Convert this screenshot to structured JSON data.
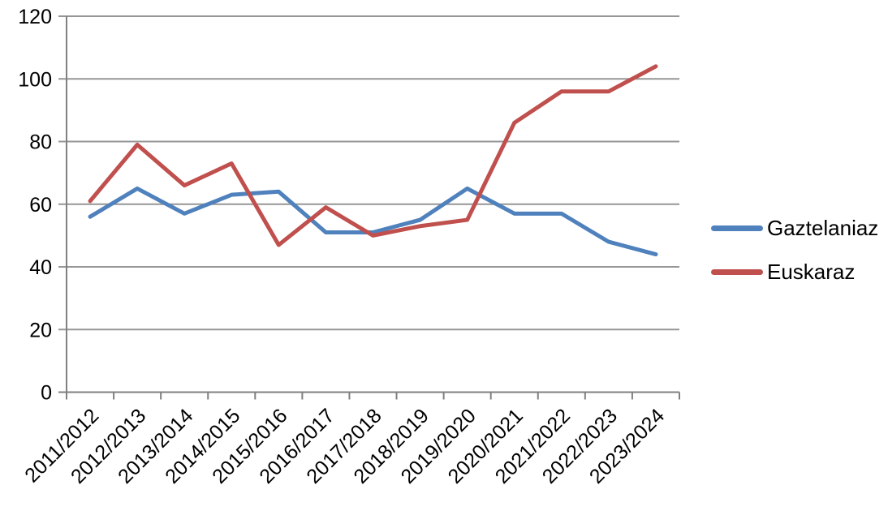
{
  "chart_data": {
    "type": "line",
    "title": "",
    "xlabel": "",
    "ylabel": "",
    "categories": [
      "2011/2012",
      "2012/2013",
      "2013/2014",
      "2014/2015",
      "2015/2016",
      "2016/2017",
      "2017/2018",
      "2018/2019",
      "2019/2020",
      "2020/2021",
      "2021/2022",
      "2022/2023",
      "2023/2024"
    ],
    "series": [
      {
        "name": "Gaztelaniaz",
        "color": "#4F81BD",
        "values": [
          56,
          65,
          57,
          63,
          64,
          51,
          51,
          55,
          65,
          57,
          57,
          48,
          44
        ]
      },
      {
        "name": "Euskaraz",
        "color": "#C0504D",
        "values": [
          61,
          79,
          66,
          73,
          47,
          59,
          50,
          53,
          55,
          86,
          96,
          96,
          104
        ]
      }
    ],
    "ylim": [
      0,
      120
    ],
    "yticks": [
      0,
      20,
      40,
      60,
      80,
      100,
      120
    ],
    "grid": true,
    "legend_position": "right",
    "colors": {
      "grid": "#969696",
      "axis": "#808080",
      "text": "#000000",
      "background": "#FFFFFF"
    }
  }
}
